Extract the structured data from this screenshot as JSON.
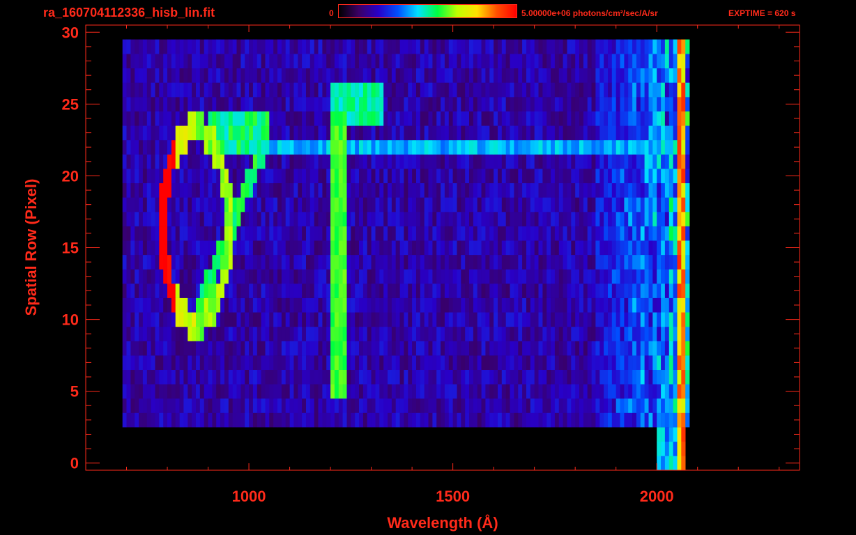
{
  "header": {
    "file_title": "ra_160704112336_hisb_lin.fit",
    "colorbar_min": "0",
    "colorbar_max_label": "5.00000e+06 photons/cm²/sec/A/sr",
    "exptime": "EXPTIME = 620 s"
  },
  "colors": {
    "axis": "#ff2a1a",
    "background": "#000000",
    "colormap": [
      "#000000",
      "#3a0063",
      "#2800c8",
      "#0050ff",
      "#00e0ff",
      "#00ff40",
      "#c0ff00",
      "#ffe000",
      "#ff5000",
      "#ff0000"
    ]
  },
  "chart_data": {
    "type": "heatmap",
    "title": "",
    "xlabel": "Wavelength (Å)",
    "ylabel": "Spatial Row (Pixel)",
    "xlim": [
      600,
      2350
    ],
    "ylim": [
      -0.5,
      30.5
    ],
    "x_ticks": [
      1000,
      1500,
      2000
    ],
    "y_ticks": [
      0,
      5,
      10,
      15,
      20,
      25,
      30
    ],
    "colorbar": {
      "min": 0,
      "max": 5000000,
      "units": "photons/cm²/sec/A/sr"
    },
    "exptime_s": 620,
    "features": [
      {
        "name": "Lyman-alpha line",
        "x": 1216,
        "rows": [
          5,
          24
        ],
        "level": 0.55
      },
      {
        "name": "comet ring",
        "x_range": [
          800,
          1000
        ],
        "rows": [
          10,
          24
        ],
        "peak_level": 1.0
      },
      {
        "name": "horizontal band",
        "x_range": [
          1000,
          2050
        ],
        "row": 22,
        "level": 0.35
      },
      {
        "name": "tail knot",
        "x_range": [
          1200,
          1330
        ],
        "rows": [
          24,
          26
        ],
        "level": 0.45
      },
      {
        "name": "right edge",
        "x": 2060,
        "rows": [
          0,
          30
        ],
        "level": 0.7
      }
    ]
  }
}
